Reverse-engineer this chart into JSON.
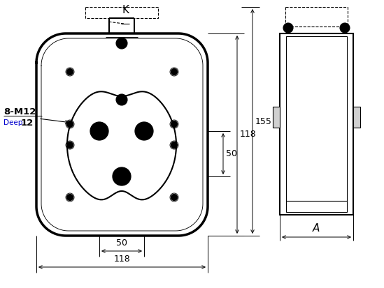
{
  "bg_color": "#ffffff",
  "line_color": "#000000",
  "annotation_color": "#0000cd",
  "fig_width": 5.49,
  "fig_height": 4.13,
  "dpi": 100,
  "label_K": "K",
  "label_8M12": "8-M12",
  "label_deep": "Deep",
  "label_12": "12",
  "label_50": "50",
  "label_118": "118",
  "label_155": "155",
  "label_A": "A"
}
